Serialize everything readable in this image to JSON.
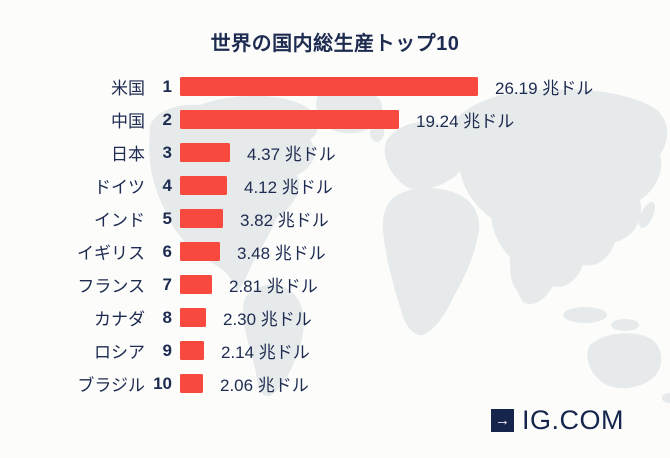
{
  "title": "世界の国内総生産トップ10",
  "chart_data": {
    "type": "bar",
    "orientation": "horizontal",
    "title": "世界の国内総生産トップ10",
    "categories": [
      "米国",
      "中国",
      "日本",
      "ドイツ",
      "インド",
      "イギリス",
      "フランス",
      "カナダ",
      "ロシア",
      "ブラジル"
    ],
    "ranks": [
      "1",
      "2",
      "3",
      "4",
      "5",
      "6",
      "7",
      "8",
      "9",
      "10"
    ],
    "values": [
      26.19,
      19.24,
      4.37,
      4.12,
      3.82,
      3.48,
      2.81,
      2.3,
      2.14,
      2.06
    ],
    "value_labels": [
      "26.19 兆ドル",
      "19.24 兆ドル",
      "4.37 兆ドル",
      "4.12 兆ドル",
      "3.82 兆ドル",
      "3.48 兆ドル",
      "2.81 兆ドル",
      "2.30 兆ドル",
      "2.14 兆ドル",
      "2.06 兆ドル"
    ],
    "unit": "兆ドル",
    "xlim": [
      0,
      26.19
    ],
    "grid": false,
    "legend": false
  },
  "colors": {
    "bar": "#f8493f",
    "text": "#1d2b50",
    "map": "#e6eaeb",
    "logo_navy": "#16254c",
    "background": "#fcfcfb"
  },
  "branding": {
    "logo_text": "IG.COM",
    "arrow_icon": "→"
  }
}
